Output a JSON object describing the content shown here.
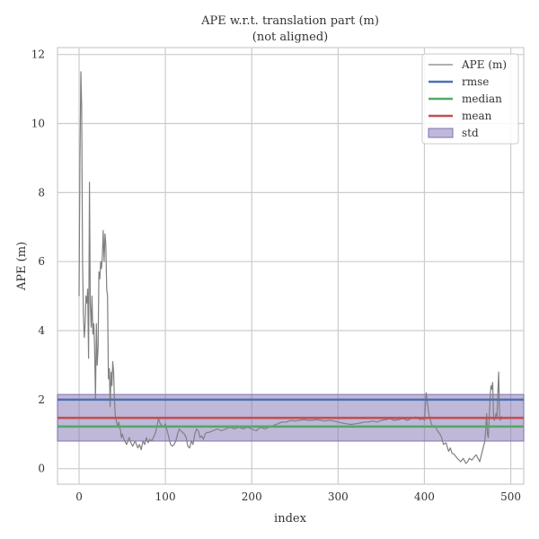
{
  "chart_data": {
    "type": "line",
    "title": "APE w.r.t. translation part (m)",
    "subtitle": "(not aligned)",
    "xlabel": "index",
    "ylabel": "APE (m)",
    "xlim": [
      -25,
      515
    ],
    "ylim": [
      -0.45,
      12.2
    ],
    "xticks": [
      0,
      100,
      200,
      300,
      400,
      500
    ],
    "yticks": [
      0,
      2,
      4,
      6,
      8,
      10,
      12
    ],
    "grid": true,
    "legend_position": "top-right",
    "colors": {
      "ape": "#808080",
      "rmse": "#4c72b0",
      "median": "#55a868",
      "mean": "#c44e52",
      "std": "#8172b2"
    },
    "stats": {
      "rmse": 2.0,
      "median": 1.22,
      "mean": 1.47,
      "std_band": [
        0.8,
        2.15
      ]
    },
    "series": [
      {
        "name": "APE (m)",
        "x": [
          0,
          1,
          2,
          3,
          4,
          5,
          6,
          7,
          8,
          9,
          10,
          11,
          12,
          13,
          14,
          15,
          16,
          17,
          18,
          19,
          20,
          21,
          22,
          23,
          24,
          25,
          26,
          27,
          28,
          29,
          30,
          31,
          32,
          33,
          34,
          35,
          36,
          37,
          38,
          39,
          40,
          41,
          42,
          43,
          44,
          45,
          46,
          47,
          48,
          49,
          50,
          52,
          55,
          58,
          60,
          62,
          65,
          68,
          70,
          72,
          74,
          76,
          78,
          80,
          82,
          84,
          86,
          88,
          90,
          92,
          94,
          96,
          98,
          100,
          102,
          104,
          106,
          108,
          110,
          112,
          114,
          116,
          118,
          120,
          122,
          124,
          126,
          128,
          130,
          132,
          134,
          136,
          138,
          140,
          142,
          144,
          146,
          148,
          150,
          155,
          160,
          165,
          170,
          175,
          180,
          185,
          190,
          195,
          200,
          205,
          210,
          215,
          220,
          225,
          230,
          235,
          240,
          245,
          250,
          255,
          260,
          265,
          270,
          275,
          280,
          285,
          290,
          295,
          300,
          305,
          310,
          315,
          320,
          325,
          330,
          335,
          340,
          345,
          350,
          355,
          360,
          365,
          370,
          375,
          380,
          385,
          390,
          395,
          398,
          400,
          402,
          405,
          408,
          410,
          412,
          415,
          418,
          420,
          422,
          425,
          428,
          430,
          432,
          435,
          438,
          440,
          442,
          445,
          448,
          450,
          452,
          455,
          458,
          460,
          462,
          464,
          466,
          468,
          470,
          472,
          473,
          474,
          475,
          476,
          477,
          478,
          479,
          480,
          481,
          482,
          483,
          484,
          485,
          486,
          487,
          488,
          489,
          490
        ],
        "values": [
          5.0,
          9.0,
          11.5,
          10.5,
          6.0,
          4.5,
          3.8,
          4.2,
          5.0,
          4.8,
          5.2,
          3.2,
          8.3,
          4.8,
          4.1,
          5.0,
          3.9,
          4.2,
          3.5,
          2.0,
          4.2,
          3.0,
          3.5,
          5.7,
          5.5,
          6.0,
          5.8,
          6.2,
          6.9,
          6.0,
          6.8,
          6.5,
          5.2,
          5.0,
          2.6,
          2.9,
          1.8,
          2.8,
          2.4,
          3.1,
          2.8,
          2.0,
          1.5,
          1.4,
          1.3,
          1.2,
          1.35,
          1.2,
          1.1,
          0.9,
          1.0,
          0.85,
          0.7,
          0.9,
          0.75,
          0.65,
          0.8,
          0.6,
          0.7,
          0.55,
          0.8,
          0.7,
          0.9,
          0.75,
          0.85,
          0.8,
          0.9,
          1.0,
          1.2,
          1.45,
          1.3,
          1.25,
          1.2,
          1.3,
          1.1,
          0.9,
          0.7,
          0.65,
          0.7,
          0.8,
          1.0,
          1.15,
          1.1,
          1.05,
          1.0,
          0.9,
          0.65,
          0.6,
          0.8,
          0.7,
          1.0,
          1.15,
          1.1,
          0.9,
          0.95,
          0.85,
          1.0,
          1.05,
          1.05,
          1.1,
          1.15,
          1.1,
          1.15,
          1.2,
          1.15,
          1.2,
          1.15,
          1.2,
          1.15,
          1.1,
          1.2,
          1.15,
          1.2,
          1.25,
          1.3,
          1.35,
          1.35,
          1.4,
          1.38,
          1.4,
          1.42,
          1.4,
          1.4,
          1.42,
          1.4,
          1.38,
          1.4,
          1.38,
          1.35,
          1.32,
          1.3,
          1.28,
          1.3,
          1.32,
          1.35,
          1.35,
          1.38,
          1.35,
          1.4,
          1.42,
          1.45,
          1.4,
          1.42,
          1.45,
          1.4,
          1.45,
          1.5,
          1.42,
          1.45,
          1.4,
          2.2,
          1.6,
          1.3,
          1.2,
          1.25,
          1.1,
          1.0,
          0.9,
          0.7,
          0.75,
          0.5,
          0.6,
          0.45,
          0.4,
          0.3,
          0.25,
          0.2,
          0.3,
          0.15,
          0.2,
          0.3,
          0.25,
          0.35,
          0.4,
          0.3,
          0.2,
          0.4,
          0.6,
          0.8,
          1.6,
          1.0,
          0.9,
          1.5,
          2.0,
          2.4,
          2.3,
          2.5,
          1.5,
          1.4,
          1.5,
          1.6,
          1.5,
          2.2,
          2.8,
          1.5,
          1.4,
          1.5,
          1.5
        ]
      }
    ],
    "legend": [
      {
        "label": "APE (m)",
        "kind": "line",
        "color": "#808080"
      },
      {
        "label": "rmse",
        "kind": "thick",
        "color": "#4c72b0"
      },
      {
        "label": "median",
        "kind": "thick",
        "color": "#55a868"
      },
      {
        "label": "mean",
        "kind": "thick",
        "color": "#c44e52"
      },
      {
        "label": "std",
        "kind": "patch",
        "color": "#8172b2"
      }
    ]
  }
}
